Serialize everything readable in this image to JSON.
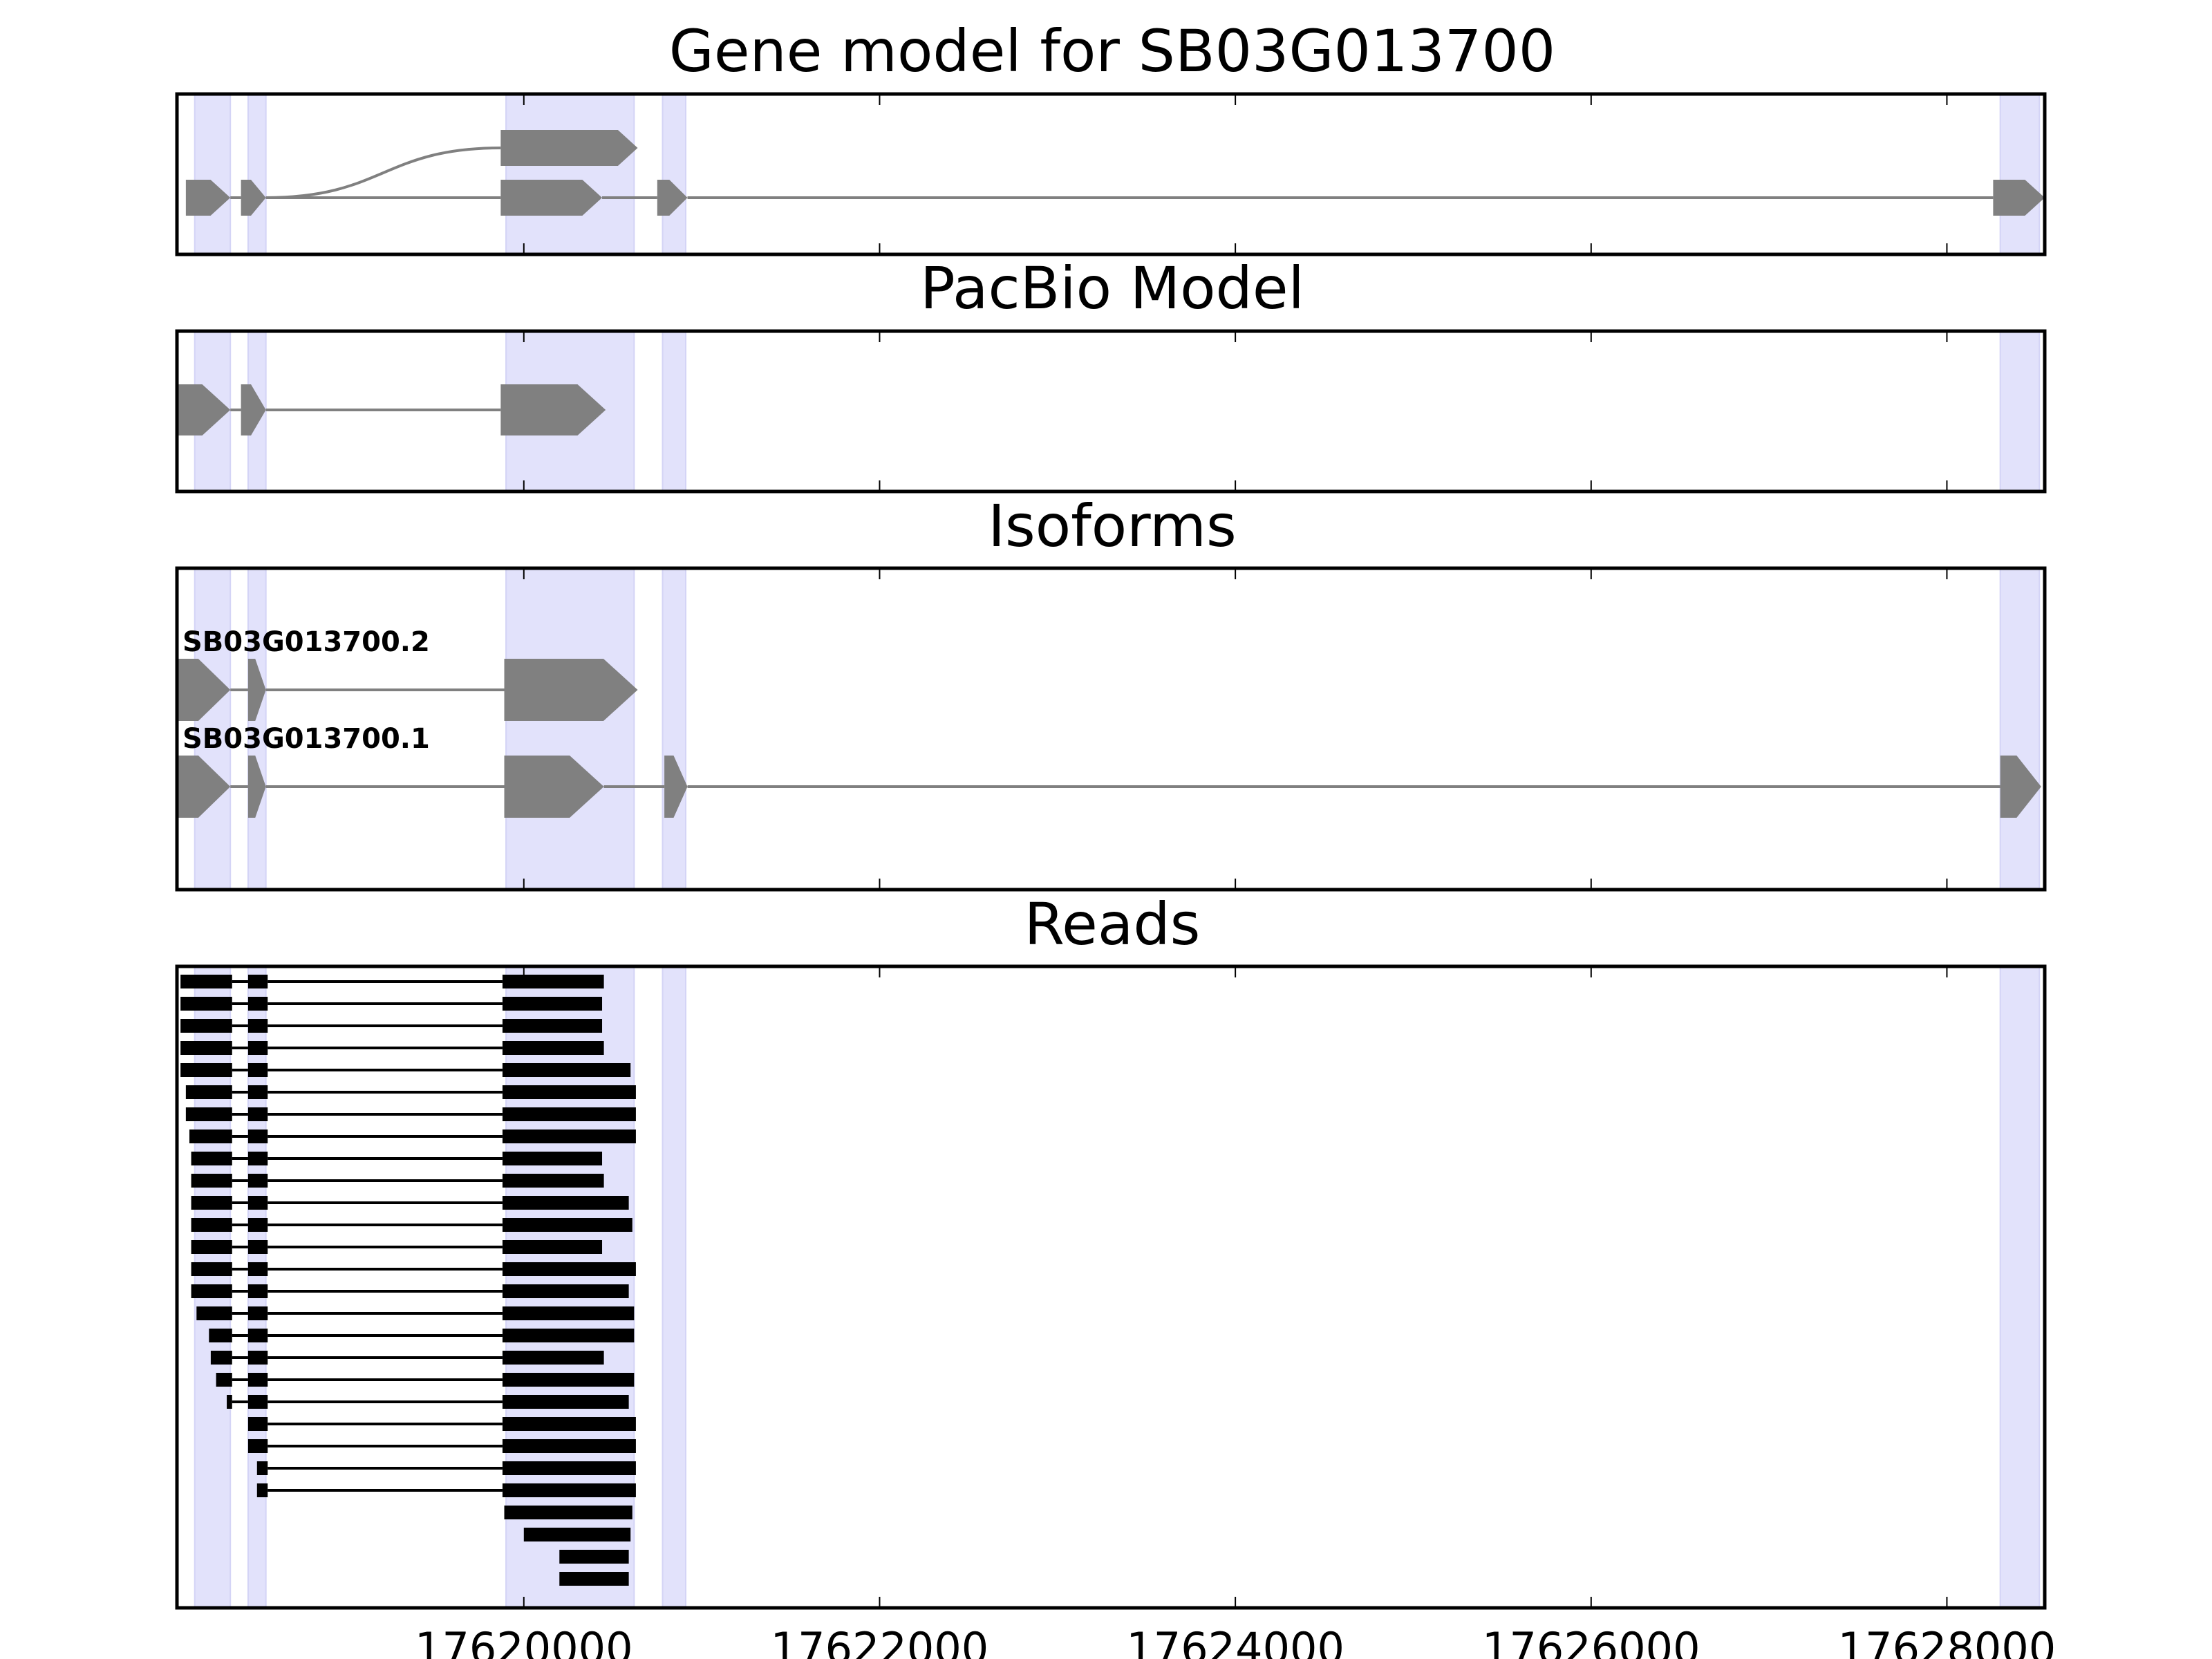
{
  "chart_data": [
    {
      "type": "gene-model",
      "title": "Gene model for SB03G013700",
      "xlim": [
        17618050,
        17628550
      ],
      "grid": false,
      "exon_highlights": [
        [
          17618150,
          17618350
        ],
        [
          17618450,
          17618550
        ],
        [
          17619900,
          17620620
        ],
        [
          17620780,
          17620910
        ],
        [
          17628300,
          17628520
        ]
      ],
      "splice_graph": {
        "nodes": [
          {
            "lane": 2,
            "start": 17618100,
            "end": 17618350,
            "strand": "+"
          },
          {
            "lane": 2,
            "start": 17618410,
            "end": 17618550,
            "strand": "+"
          },
          {
            "lane": 1,
            "start": 17619870,
            "end": 17620640,
            "strand": "+"
          },
          {
            "lane": 2,
            "start": 17619870,
            "end": 17620440,
            "strand": "+"
          },
          {
            "lane": 2,
            "start": 17620750,
            "end": 17620920,
            "strand": "+"
          },
          {
            "lane": 2,
            "start": 17628260,
            "end": 17628550,
            "strand": "+"
          }
        ],
        "edges": [
          [
            0,
            1
          ],
          [
            1,
            2
          ],
          [
            1,
            3
          ],
          [
            3,
            4
          ],
          [
            4,
            5
          ]
        ]
      }
    },
    {
      "type": "gene-model",
      "title": "PacBio Model",
      "xlim": [
        17618050,
        17628550
      ],
      "exon_highlights": [
        [
          17618150,
          17618350
        ],
        [
          17618450,
          17618550
        ],
        [
          17619900,
          17620620
        ],
        [
          17620780,
          17620910
        ],
        [
          17628300,
          17628520
        ]
      ],
      "transcripts": [
        {
          "name": "",
          "exons": [
            [
              17618050,
              17618350
            ],
            [
              17618410,
              17618550
            ],
            [
              17619870,
              17620460
            ]
          ],
          "strand": "+"
        }
      ]
    },
    {
      "type": "gene-model",
      "title": "Isoforms",
      "xlim": [
        17618050,
        17628550
      ],
      "exon_highlights": [
        [
          17618150,
          17618350
        ],
        [
          17618450,
          17618550
        ],
        [
          17619900,
          17620620
        ],
        [
          17620780,
          17620910
        ],
        [
          17628300,
          17628520
        ]
      ],
      "transcripts": [
        {
          "name": "SB03G013700.2",
          "exons": [
            [
              17618050,
              17618350
            ],
            [
              17618450,
              17618550
            ],
            [
              17619890,
              17620640
            ]
          ],
          "strand": "+"
        },
        {
          "name": "SB03G013700.1",
          "exons": [
            [
              17618050,
              17618350
            ],
            [
              17618450,
              17618550
            ],
            [
              17619890,
              17620450
            ],
            [
              17620790,
              17620920
            ],
            [
              17628300,
              17628530
            ]
          ],
          "strand": "+"
        }
      ]
    },
    {
      "type": "gene-model",
      "title": "Reads",
      "xlim": [
        17618050,
        17628550
      ],
      "xticks": [
        17620000,
        17622000,
        17624000,
        17626000,
        17628000
      ],
      "xtick_labels": [
        "17620000",
        "17622000",
        "17624000",
        "17626000",
        "17628000"
      ],
      "exon_highlights": [
        [
          17618150,
          17618350
        ],
        [
          17618450,
          17618550
        ],
        [
          17619900,
          17620620
        ],
        [
          17620780,
          17620910
        ],
        [
          17628300,
          17628520
        ]
      ],
      "reads": [
        [
          [
            17618070,
            17618360
          ],
          [
            17618450,
            17618560
          ],
          [
            17619880,
            17620450
          ]
        ],
        [
          [
            17618070,
            17618360
          ],
          [
            17618450,
            17618560
          ],
          [
            17619880,
            17620440
          ]
        ],
        [
          [
            17618070,
            17618360
          ],
          [
            17618450,
            17618560
          ],
          [
            17619880,
            17620440
          ]
        ],
        [
          [
            17618070,
            17618360
          ],
          [
            17618450,
            17618560
          ],
          [
            17619880,
            17620450
          ]
        ],
        [
          [
            17618070,
            17618360
          ],
          [
            17618450,
            17618560
          ],
          [
            17619880,
            17620600
          ]
        ],
        [
          [
            17618100,
            17618360
          ],
          [
            17618450,
            17618560
          ],
          [
            17619880,
            17620630
          ]
        ],
        [
          [
            17618100,
            17618360
          ],
          [
            17618450,
            17618560
          ],
          [
            17619880,
            17620630
          ]
        ],
        [
          [
            17618120,
            17618360
          ],
          [
            17618450,
            17618560
          ],
          [
            17619880,
            17620630
          ]
        ],
        [
          [
            17618130,
            17618360
          ],
          [
            17618450,
            17618560
          ],
          [
            17619880,
            17620440
          ]
        ],
        [
          [
            17618130,
            17618360
          ],
          [
            17618450,
            17618560
          ],
          [
            17619880,
            17620450
          ]
        ],
        [
          [
            17618130,
            17618360
          ],
          [
            17618450,
            17618560
          ],
          [
            17619880,
            17620590
          ]
        ],
        [
          [
            17618130,
            17618360
          ],
          [
            17618450,
            17618560
          ],
          [
            17619880,
            17620610
          ]
        ],
        [
          [
            17618130,
            17618360
          ],
          [
            17618450,
            17618560
          ],
          [
            17619880,
            17620440
          ]
        ],
        [
          [
            17618130,
            17618360
          ],
          [
            17618450,
            17618560
          ],
          [
            17619880,
            17620630
          ]
        ],
        [
          [
            17618130,
            17618360
          ],
          [
            17618450,
            17618560
          ],
          [
            17619880,
            17620590
          ]
        ],
        [
          [
            17618160,
            17618360
          ],
          [
            17618450,
            17618560
          ],
          [
            17619880,
            17620620
          ]
        ],
        [
          [
            17618230,
            17618360
          ],
          [
            17618450,
            17618560
          ],
          [
            17619880,
            17620620
          ]
        ],
        [
          [
            17618240,
            17618360
          ],
          [
            17618450,
            17618560
          ],
          [
            17619880,
            17620450
          ]
        ],
        [
          [
            17618270,
            17618360
          ],
          [
            17618450,
            17618560
          ],
          [
            17619880,
            17620620
          ]
        ],
        [
          [
            17618330,
            17618360
          ],
          [
            17618450,
            17618560
          ],
          [
            17619880,
            17620590
          ]
        ],
        [
          [
            17618450,
            17618560
          ],
          [
            17619880,
            17620630
          ]
        ],
        [
          [
            17618450,
            17618560
          ],
          [
            17619880,
            17620630
          ]
        ],
        [
          [
            17618500,
            17618560
          ],
          [
            17619880,
            17620630
          ]
        ],
        [
          [
            17618500,
            17618560
          ],
          [
            17619880,
            17620630
          ]
        ],
        [
          [
            17619890,
            17620610
          ]
        ],
        [
          [
            17620000,
            17620600
          ]
        ],
        [
          [
            17620200,
            17620590
          ]
        ],
        [
          [
            17620200,
            17620590
          ]
        ]
      ]
    }
  ]
}
